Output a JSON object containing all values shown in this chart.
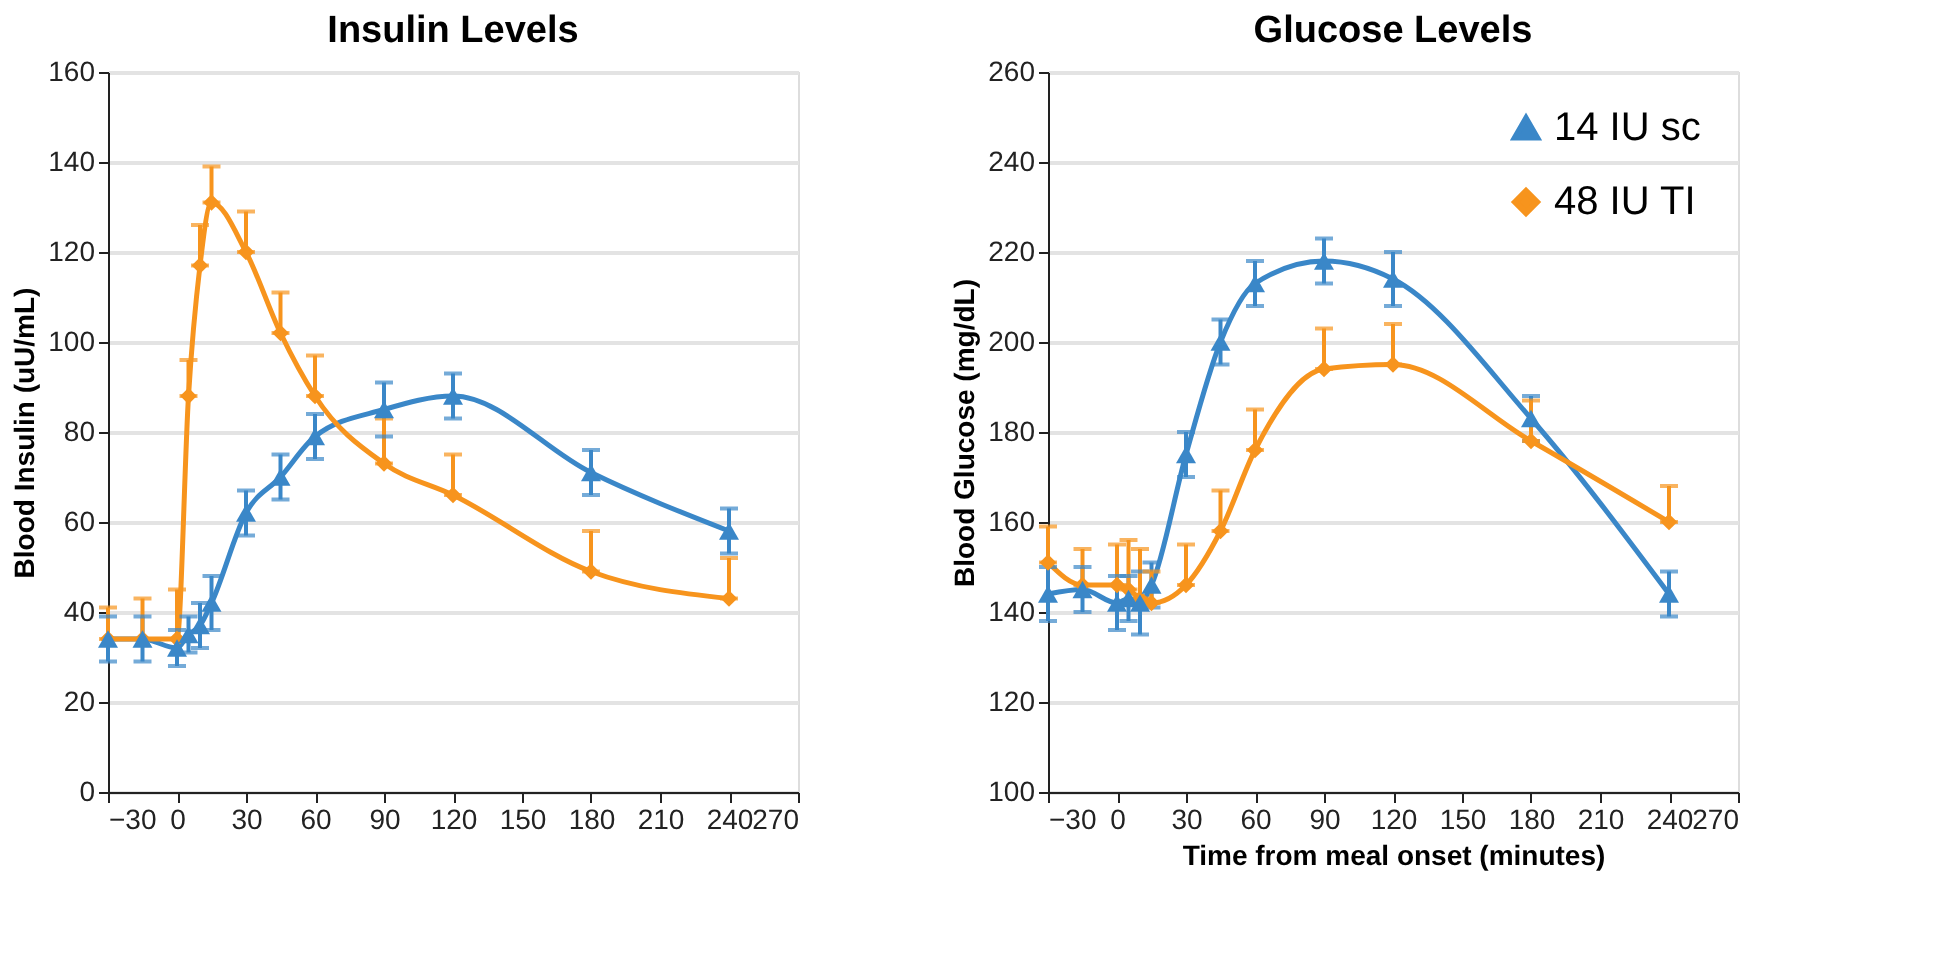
{
  "chart_data": [
    {
      "type": "line",
      "title": "Insulin Levels",
      "ylabel": "Blood Insulin (uU/mL)",
      "xlim": [
        -30,
        270
      ],
      "xticks": [
        -30,
        0,
        30,
        60,
        90,
        120,
        150,
        180,
        210,
        240,
        270
      ],
      "ylim": [
        0,
        160
      ],
      "yticks": [
        0,
        20,
        40,
        60,
        80,
        100,
        120,
        140,
        160
      ],
      "grid": "y",
      "legend": false,
      "series": [
        {
          "color": "#3a87c8",
          "marker": "triangle",
          "x": [
            -30,
            -15,
            0,
            5,
            10,
            15,
            30,
            45,
            60,
            90,
            120,
            180,
            240
          ],
          "values": [
            34,
            34,
            32,
            35,
            37,
            42,
            62,
            70,
            79,
            85,
            88,
            71,
            58
          ],
          "errors": [
            5,
            5,
            4,
            4,
            5,
            6,
            5,
            5,
            5,
            6,
            5,
            5,
            5
          ]
        },
        {
          "color": "#f7941d",
          "marker": "diamond",
          "x": [
            -30,
            -15,
            0,
            5,
            10,
            15,
            30,
            45,
            60,
            90,
            120,
            180,
            240
          ],
          "values": [
            34,
            34,
            34,
            88,
            117,
            131,
            120,
            102,
            88,
            73,
            66,
            49,
            43
          ],
          "errors": [
            [
              34,
              41
            ],
            [
              34,
              43
            ],
            [
              34,
              45
            ],
            [
              88,
              96
            ],
            [
              117,
              126
            ],
            [
              131,
              139
            ],
            [
              120,
              129
            ],
            [
              102,
              111
            ],
            [
              88,
              97
            ],
            [
              73,
              83
            ],
            [
              66,
              75
            ],
            [
              49,
              58
            ],
            [
              43,
              52
            ]
          ]
        }
      ]
    },
    {
      "type": "line",
      "title": "Glucose Levels",
      "xlabel": "Time from meal onset (minutes)",
      "ylabel": "Blood Glucose (mg/dL)",
      "xlim": [
        -30,
        270
      ],
      "xticks": [
        -30,
        0,
        30,
        60,
        90,
        120,
        150,
        180,
        210,
        240,
        270
      ],
      "ylim": [
        100,
        260
      ],
      "yticks": [
        100,
        120,
        140,
        160,
        180,
        200,
        220,
        240,
        260
      ],
      "grid": "y",
      "legend": "top right",
      "series": [
        {
          "name": "14 IU sc",
          "color": "#3a87c8",
          "marker": "triangle",
          "x": [
            -30,
            -15,
            0,
            5,
            10,
            15,
            30,
            45,
            60,
            90,
            120,
            180,
            240
          ],
          "values": [
            144,
            145,
            142,
            143,
            142,
            146,
            175,
            200,
            213,
            218,
            214,
            183,
            144
          ],
          "errors": [
            6,
            5,
            6,
            5,
            7,
            5,
            5,
            5,
            5,
            5,
            6,
            5,
            5
          ]
        },
        {
          "name": "48 IU TI",
          "color": "#f7941d",
          "marker": "diamond",
          "x": [
            -30,
            -15,
            0,
            5,
            10,
            15,
            30,
            45,
            60,
            90,
            120,
            180,
            240
          ],
          "values": [
            151,
            146,
            146,
            145,
            143,
            142,
            146,
            158,
            176,
            194,
            195,
            178,
            160
          ],
          "errors": [
            [
              151,
              159
            ],
            [
              146,
              154
            ],
            [
              146,
              155
            ],
            [
              145,
              156
            ],
            [
              143,
              154
            ],
            [
              142,
              149
            ],
            [
              146,
              155
            ],
            [
              158,
              167
            ],
            [
              176,
              185
            ],
            [
              194,
              203
            ],
            [
              195,
              204
            ],
            [
              178,
              187
            ],
            [
              160,
              168
            ]
          ]
        }
      ]
    }
  ]
}
